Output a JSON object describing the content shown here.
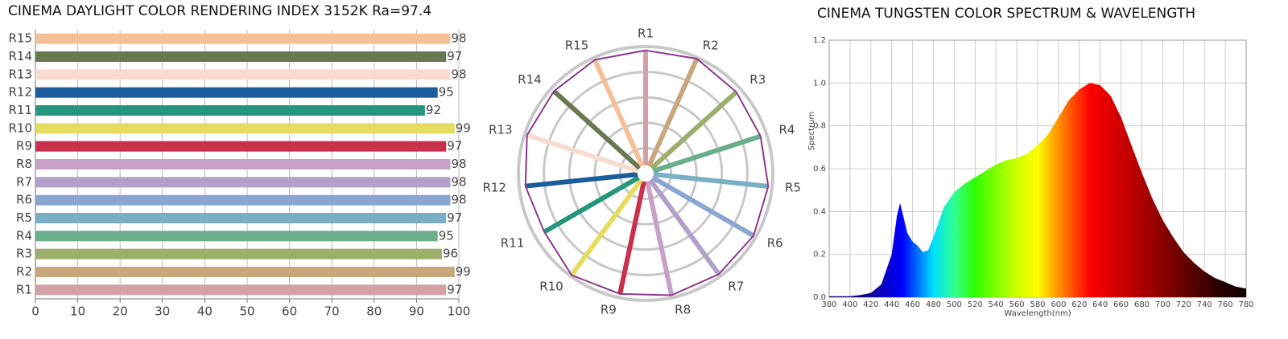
{
  "chart_data": [
    {
      "type": "hbar",
      "title": "CINEMA DAYLIGHT COLOR RENDERING INDEX 3152K  Ra=97.4",
      "categories": [
        "R1",
        "R2",
        "R3",
        "R4",
        "R5",
        "R6",
        "R7",
        "R8",
        "R9",
        "R10",
        "R11",
        "R12",
        "R13",
        "R14",
        "R15"
      ],
      "values": [
        97,
        99,
        96,
        95,
        97,
        98,
        98,
        98,
        97,
        99,
        92,
        95,
        98,
        97,
        98
      ],
      "colors": [
        "#d4a0a8",
        "#c8a77c",
        "#9cad6c",
        "#6aae8a",
        "#7aaec4",
        "#8aa6d0",
        "#b2a0c8",
        "#c8a0c8",
        "#c8304c",
        "#e6dc60",
        "#24967e",
        "#1a5c9c",
        "#f8dcd0",
        "#6a7852",
        "#f4c098"
      ],
      "xlim": [
        0,
        100
      ],
      "xticks": [
        0,
        10,
        20,
        30,
        40,
        50,
        60,
        70,
        80,
        90,
        100
      ],
      "grid": true
    },
    {
      "type": "radar",
      "categories": [
        "R1",
        "R2",
        "R3",
        "R4",
        "R5",
        "R6",
        "R7",
        "R8",
        "R9",
        "R10",
        "R11",
        "R12",
        "R13",
        "R14",
        "R15"
      ],
      "values": [
        97,
        99,
        96,
        95,
        97,
        98,
        98,
        98,
        97,
        99,
        92,
        95,
        98,
        97,
        98
      ],
      "colors": [
        "#d4a0a8",
        "#c8a77c",
        "#9cad6c",
        "#6aae8a",
        "#7aaec4",
        "#8aa6d0",
        "#b2a0c8",
        "#c8a0c8",
        "#c8304c",
        "#e6dc60",
        "#24967e",
        "#1a5c9c",
        "#f8dcd0",
        "#6a7852",
        "#f4c098"
      ],
      "outline_color": "#8b3a8b",
      "rlim": [
        0,
        100
      ],
      "rticks": [
        20,
        40,
        60,
        80,
        100
      ],
      "grid": true
    },
    {
      "type": "area",
      "title": "CINEMA TUNGSTEN COLOR SPECTRUM & WAVELENGTH",
      "xlabel": "Wavelength(nm)",
      "ylabel": "Spectrum",
      "x": [
        380,
        390,
        400,
        410,
        420,
        430,
        440,
        445,
        448,
        450,
        455,
        460,
        465,
        470,
        475,
        480,
        490,
        500,
        510,
        520,
        530,
        540,
        550,
        560,
        570,
        580,
        590,
        600,
        610,
        620,
        630,
        640,
        650,
        660,
        670,
        680,
        690,
        700,
        710,
        720,
        730,
        740,
        750,
        760,
        770,
        780
      ],
      "values": [
        0.005,
        0.005,
        0.005,
        0.01,
        0.02,
        0.06,
        0.2,
        0.38,
        0.44,
        0.4,
        0.3,
        0.26,
        0.24,
        0.21,
        0.22,
        0.28,
        0.42,
        0.49,
        0.53,
        0.56,
        0.59,
        0.62,
        0.64,
        0.65,
        0.67,
        0.71,
        0.76,
        0.84,
        0.92,
        0.97,
        1.0,
        0.99,
        0.94,
        0.84,
        0.71,
        0.58,
        0.46,
        0.36,
        0.28,
        0.21,
        0.16,
        0.12,
        0.09,
        0.07,
        0.05,
        0.04
      ],
      "xlim": [
        380,
        780
      ],
      "xticks": [
        380,
        400,
        420,
        440,
        460,
        480,
        500,
        520,
        540,
        560,
        580,
        600,
        620,
        640,
        660,
        680,
        700,
        720,
        740,
        760,
        780
      ],
      "ylim": [
        0,
        1.2
      ],
      "yticks": [
        {
          "value": 0,
          "label": "0.0"
        },
        0.2,
        0.4,
        0.6,
        0.8,
        {
          "value": 1,
          "label": "1.0"
        },
        1.2
      ],
      "grid": true
    }
  ]
}
